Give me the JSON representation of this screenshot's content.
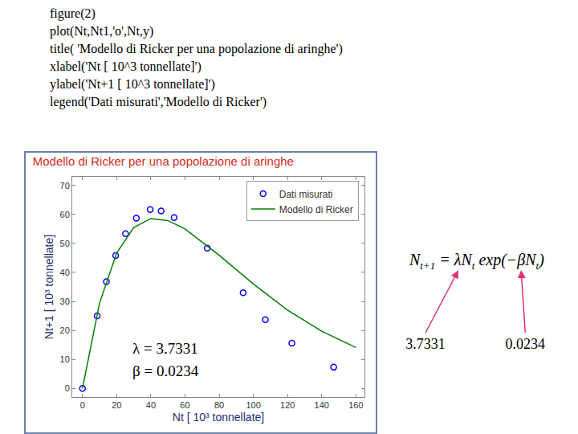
{
  "code": [
    "figure(2)",
    "plot(Nt,Nt1,'o',Nt,y)",
    "title( 'Modello di Ricker per una popolazione di aringhe')",
    "xlabel('Nt [ 10^3 tonnellate]')",
    "ylabel('Nt+1 [ 10^3 tonnellate]')",
    "legend('Dati misurati','Modello di Ricker')"
  ],
  "chart_data": {
    "type": "scatter",
    "title": "Modello di Ricker per una popolazione di aringhe",
    "x_label": "Nt [ 10³ tonnellate]",
    "y_label": "Nt+1 [ 10³ tonnellate]",
    "series": [
      {
        "name": "Dati misurati",
        "type": "scatter",
        "color": "#0000ff",
        "marker": "circle",
        "x": [
          0,
          8.6,
          14,
          19.4,
          25.2,
          31.5,
          39.6,
          46,
          53.6,
          73,
          94,
          107,
          122.5,
          147
        ],
        "values": [
          0,
          25,
          36.8,
          45.8,
          53.4,
          58.7,
          61.7,
          61.2,
          58.9,
          48.4,
          33,
          23.7,
          15.6,
          7.3
        ]
      },
      {
        "name": "Modello di Ricker",
        "type": "line",
        "color": "#008000",
        "line_style": "solid",
        "x": [
          0,
          10,
          20,
          30,
          40,
          50,
          60,
          80,
          100,
          120,
          140,
          160
        ],
        "values": [
          0,
          29.5,
          46.7,
          55.5,
          58.6,
          57.9,
          55,
          45.9,
          36,
          27,
          19.7,
          14.1
        ]
      }
    ],
    "annotations": [
      "λ = 3.7331",
      "β = 0.0234"
    ],
    "xlim": [
      -6,
      165
    ],
    "xticks": [
      0,
      20,
      40,
      60,
      80,
      100,
      120,
      140,
      160
    ],
    "ylim": [
      -3,
      73
    ],
    "yticks": [
      0,
      10,
      20,
      30,
      40,
      50,
      60,
      70
    ],
    "grid": false,
    "legend": "upper right"
  },
  "formula": {
    "segments": [
      {
        "text": "N",
        "sub": "t+1"
      },
      {
        "text": " = "
      },
      {
        "text": "λ"
      },
      {
        "text": "N",
        "sub": "t"
      },
      {
        "text": " exp(−"
      },
      {
        "text": "β"
      },
      {
        "text": "N",
        "sub": "t"
      },
      {
        "text": ")"
      }
    ],
    "labels": [
      {
        "text": "3.7331",
        "points_to": "λ"
      },
      {
        "text": "0.0234",
        "points_to": "β"
      }
    ]
  }
}
